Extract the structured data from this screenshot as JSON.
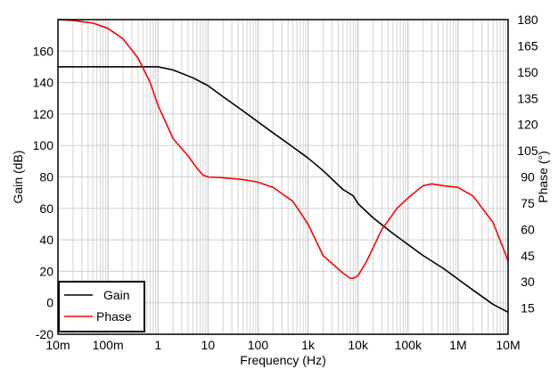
{
  "chart_data": {
    "type": "line",
    "xlabel": "Frequency (Hz)",
    "ylabel_left": "Gain (dB)",
    "ylabel_right": "Phase (°)",
    "x_scale": "log",
    "xlim": [
      0.01,
      10000000
    ],
    "ylim_left": [
      -20,
      180
    ],
    "ylim_right": [
      0,
      180
    ],
    "x_ticks": [
      {
        "value": 0.01,
        "label": "10m"
      },
      {
        "value": 0.1,
        "label": "100m"
      },
      {
        "value": 1,
        "label": "1"
      },
      {
        "value": 10,
        "label": "10"
      },
      {
        "value": 100,
        "label": "100"
      },
      {
        "value": 1000,
        "label": "1k"
      },
      {
        "value": 10000,
        "label": "10k"
      },
      {
        "value": 100000,
        "label": "100k"
      },
      {
        "value": 1000000,
        "label": "1M"
      },
      {
        "value": 10000000,
        "label": "10M"
      }
    ],
    "y_left_ticks": [
      {
        "value": -20,
        "label": "-20"
      },
      {
        "value": 0,
        "label": "0"
      },
      {
        "value": 20,
        "label": "20"
      },
      {
        "value": 40,
        "label": "40"
      },
      {
        "value": 60,
        "label": "60"
      },
      {
        "value": 80,
        "label": "80"
      },
      {
        "value": 100,
        "label": "100"
      },
      {
        "value": 120,
        "label": "120"
      },
      {
        "value": 140,
        "label": "140"
      },
      {
        "value": 160,
        "label": "160"
      }
    ],
    "y_right_ticks": [
      {
        "value": 15,
        "label": "15"
      },
      {
        "value": 30,
        "label": "30"
      },
      {
        "value": 45,
        "label": "45"
      },
      {
        "value": 60,
        "label": "60"
      },
      {
        "value": 75,
        "label": "75"
      },
      {
        "value": 90,
        "label": "90"
      },
      {
        "value": 105,
        "label": "105"
      },
      {
        "value": 120,
        "label": "120"
      },
      {
        "value": 135,
        "label": "135"
      },
      {
        "value": 150,
        "label": "150"
      },
      {
        "value": 165,
        "label": "165"
      },
      {
        "value": 180,
        "label": "180"
      }
    ],
    "grid": true,
    "legend_position": "bottom-left",
    "series": [
      {
        "name": "Gain",
        "axis": "left",
        "color": "#000000",
        "x": [
          0.01,
          0.1,
          0.5,
          1,
          2,
          5,
          10,
          20,
          50,
          100,
          200,
          500,
          1000,
          2000,
          5000,
          8000,
          10000,
          20000,
          50000,
          100000,
          200000,
          500000,
          1000000,
          2000000,
          5000000,
          10000000
        ],
        "y": [
          150,
          150,
          150,
          150,
          148,
          143,
          138,
          131,
          122,
          115,
          108,
          99,
          92,
          84,
          72,
          68,
          63,
          54,
          44,
          37,
          30,
          22,
          15,
          8,
          -1,
          -6
        ]
      },
      {
        "name": "Phase",
        "axis": "right",
        "color": "#ff0000",
        "x": [
          0.01,
          0.02,
          0.05,
          0.1,
          0.2,
          0.4,
          0.7,
          1,
          2,
          4,
          6,
          8,
          10,
          20,
          50,
          100,
          200,
          500,
          1000,
          2000,
          5000,
          7000,
          8000,
          10000,
          15000,
          30000,
          60000,
          100000,
          200000,
          300000,
          500000,
          1000000,
          2000000,
          5000000,
          10000000
        ],
        "y": [
          180,
          179.5,
          178,
          175,
          169,
          158,
          144,
          131,
          112,
          102,
          95,
          91,
          90,
          89.5,
          88.5,
          87,
          84,
          76,
          63,
          45,
          35,
          32,
          32,
          33.5,
          42,
          60,
          72,
          78,
          85,
          86,
          85,
          84,
          79,
          64,
          42
        ]
      }
    ]
  }
}
